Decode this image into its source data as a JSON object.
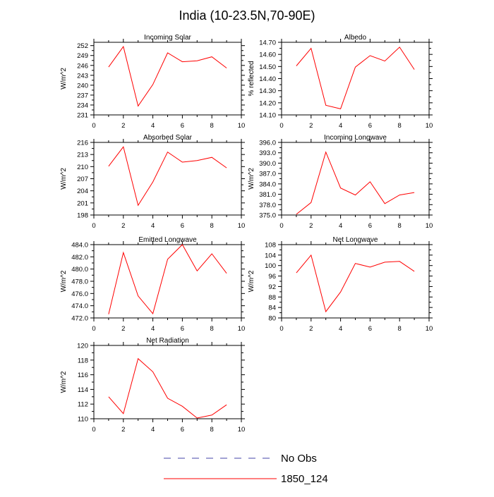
{
  "title": "India (10-23.5N,70-90E)",
  "colors": {
    "model": "#ff0000",
    "obs": "#4444aa",
    "axis": "#000000"
  },
  "legend": [
    {
      "label": "No Obs",
      "style": "dashed",
      "color": "#4444aa"
    },
    {
      "label": "1850_124",
      "style": "solid",
      "color": "#ff0000"
    }
  ],
  "chart_data": [
    {
      "type": "line",
      "title": "Incoming Solar",
      "ylabel": "W/m^2",
      "xlim": [
        0,
        10
      ],
      "xticks": [
        "0",
        "2",
        "4",
        "6",
        "8",
        "10"
      ],
      "ylim": [
        231,
        253
      ],
      "yticks": [
        "231",
        "234",
        "237",
        "240",
        "243",
        "246",
        "249",
        "252"
      ],
      "series": [
        {
          "x": [
            1,
            2,
            3,
            4,
            5,
            6,
            7,
            8,
            9
          ],
          "values": [
            245.5,
            251.7,
            233.7,
            240.2,
            249.8,
            247.1,
            247.4,
            248.6,
            245.2
          ]
        }
      ]
    },
    {
      "type": "line",
      "title": "Albedo",
      "ylabel": "% reflected",
      "xlim": [
        0,
        10
      ],
      "xticks": [
        "0",
        "2",
        "4",
        "6",
        "8",
        "10"
      ],
      "ylim": [
        14.1,
        14.7
      ],
      "yticks": [
        "14.10",
        "14.20",
        "14.30",
        "14.40",
        "14.50",
        "14.60",
        "14.70"
      ],
      "series": [
        {
          "x": [
            1,
            2,
            3,
            4,
            5,
            6,
            7,
            8,
            9
          ],
          "values": [
            14.505,
            14.65,
            14.18,
            14.15,
            14.495,
            14.59,
            14.545,
            14.66,
            14.475
          ]
        }
      ]
    },
    {
      "type": "line",
      "title": "Absorbed Solar",
      "ylabel": "W/m^2",
      "xlim": [
        0,
        10
      ],
      "xticks": [
        "0",
        "2",
        "4",
        "6",
        "8",
        "10"
      ],
      "ylim": [
        198,
        216
      ],
      "yticks": [
        "198",
        "201",
        "204",
        "207",
        "210",
        "213",
        "216"
      ],
      "series": [
        {
          "x": [
            1,
            2,
            3,
            4,
            5,
            6,
            7,
            8,
            9
          ],
          "values": [
            210.1,
            214.9,
            200.4,
            206.2,
            213.6,
            211.1,
            211.5,
            212.3,
            209.7
          ]
        }
      ]
    },
    {
      "type": "line",
      "title": "Incoming Longwave",
      "ylabel": "W/m^2",
      "xlim": [
        0,
        10
      ],
      "xticks": [
        "0",
        "2",
        "4",
        "6",
        "8",
        "10"
      ],
      "ylim": [
        375,
        396
      ],
      "yticks": [
        "375.0",
        "378.0",
        "381.0",
        "384.0",
        "387.0",
        "390.0",
        "393.0",
        "396.0"
      ],
      "series": [
        {
          "x": [
            1,
            2,
            3,
            4,
            5,
            6,
            7,
            8,
            9
          ],
          "values": [
            375.2,
            378.6,
            393.2,
            382.8,
            380.8,
            384.6,
            378.3,
            380.8,
            381.5
          ]
        }
      ]
    },
    {
      "type": "line",
      "title": "Emitted Longwave",
      "ylabel": "W/m^2",
      "xlim": [
        0,
        10
      ],
      "xticks": [
        "0",
        "2",
        "4",
        "6",
        "8",
        "10"
      ],
      "ylim": [
        472,
        484
      ],
      "yticks": [
        "472.0",
        "474.0",
        "476.0",
        "478.0",
        "480.0",
        "482.0",
        "484.0"
      ],
      "series": [
        {
          "x": [
            1,
            2,
            3,
            4,
            5,
            6,
            7,
            8,
            9
          ],
          "values": [
            472.6,
            482.7,
            475.6,
            472.7,
            481.6,
            484.0,
            479.7,
            482.5,
            479.3
          ]
        }
      ]
    },
    {
      "type": "line",
      "title": "Net Longwave",
      "ylabel": "W/m^2",
      "xlim": [
        0,
        10
      ],
      "xticks": [
        "0",
        "2",
        "4",
        "6",
        "8",
        "10"
      ],
      "ylim": [
        80,
        108
      ],
      "yticks": [
        "80",
        "84",
        "88",
        "92",
        "96",
        "100",
        "104",
        "108"
      ],
      "series": [
        {
          "x": [
            1,
            2,
            3,
            4,
            5,
            6,
            7,
            8,
            9
          ],
          "values": [
            97.2,
            104.0,
            82.4,
            89.9,
            100.8,
            99.4,
            101.3,
            101.6,
            97.8
          ]
        }
      ]
    },
    {
      "type": "line",
      "title": "Net Radiation",
      "ylabel": "W/m^2",
      "xlim": [
        0,
        10
      ],
      "xticks": [
        "0",
        "2",
        "4",
        "6",
        "8",
        "10"
      ],
      "ylim": [
        110,
        120
      ],
      "yticks": [
        "110",
        "112",
        "114",
        "116",
        "118",
        "120"
      ],
      "series": [
        {
          "x": [
            1,
            2,
            3,
            4,
            5,
            6,
            7,
            8,
            9
          ],
          "values": [
            113.0,
            110.7,
            118.2,
            116.4,
            112.8,
            111.7,
            110.1,
            110.5,
            111.9
          ]
        }
      ]
    }
  ]
}
